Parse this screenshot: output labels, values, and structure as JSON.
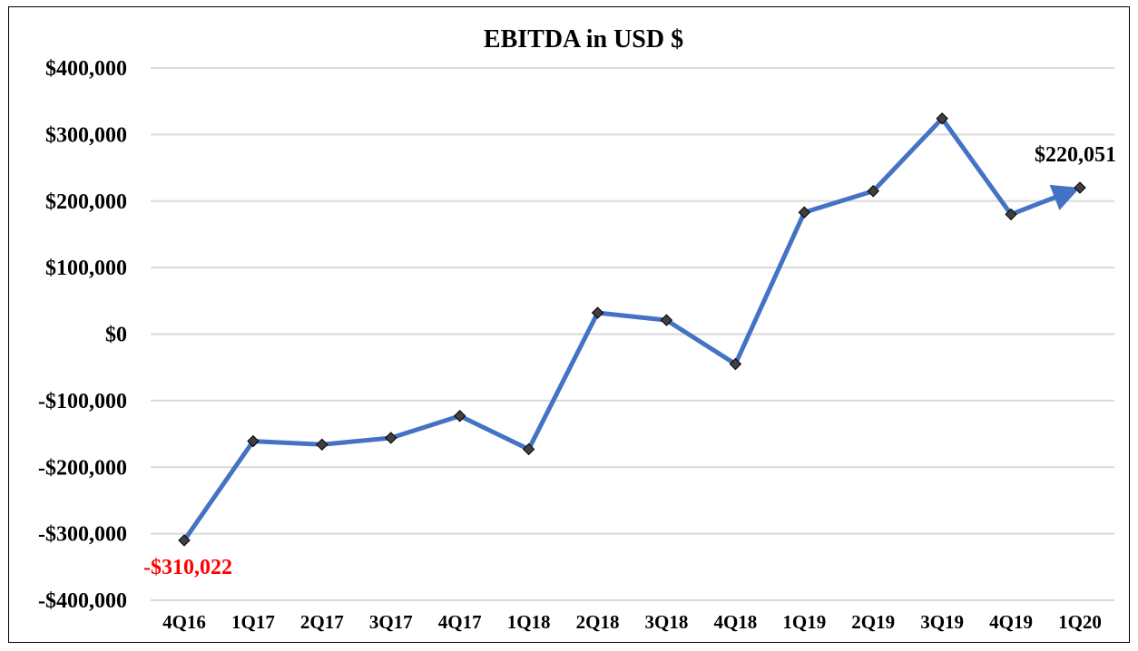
{
  "chart_data": {
    "type": "line",
    "title": "EBITDA in USD $",
    "categories": [
      "4Q16",
      "1Q17",
      "2Q17",
      "3Q17",
      "4Q17",
      "1Q18",
      "2Q18",
      "3Q18",
      "4Q18",
      "1Q19",
      "2Q19",
      "3Q19",
      "4Q19",
      "1Q20"
    ],
    "series": [
      {
        "values": [
          -310022,
          -161000,
          -166000,
          -156000,
          -123000,
          -173000,
          32000,
          21000,
          -45000,
          183000,
          215000,
          324000,
          180000,
          220051
        ],
        "color": "#4472C4",
        "marker": "diamond",
        "marker_color": "#404040"
      }
    ],
    "ylim": [
      -400000,
      400000
    ],
    "yticks": [
      400000,
      300000,
      200000,
      100000,
      0,
      -100000,
      -200000,
      -300000,
      -400000
    ],
    "ytick_labels": [
      "$400,000",
      "$300,000",
      "$200,000",
      "$100,000",
      "$0",
      "-$100,000",
      "-$200,000",
      "-$300,000",
      "-$400,000"
    ],
    "grid": true,
    "end_arrow": true,
    "annotations": [
      {
        "point_index": 0,
        "text": "-$310,022",
        "color": "#FF0000"
      },
      {
        "point_index": 13,
        "text": "$220,051",
        "color": "#000000"
      }
    ]
  }
}
